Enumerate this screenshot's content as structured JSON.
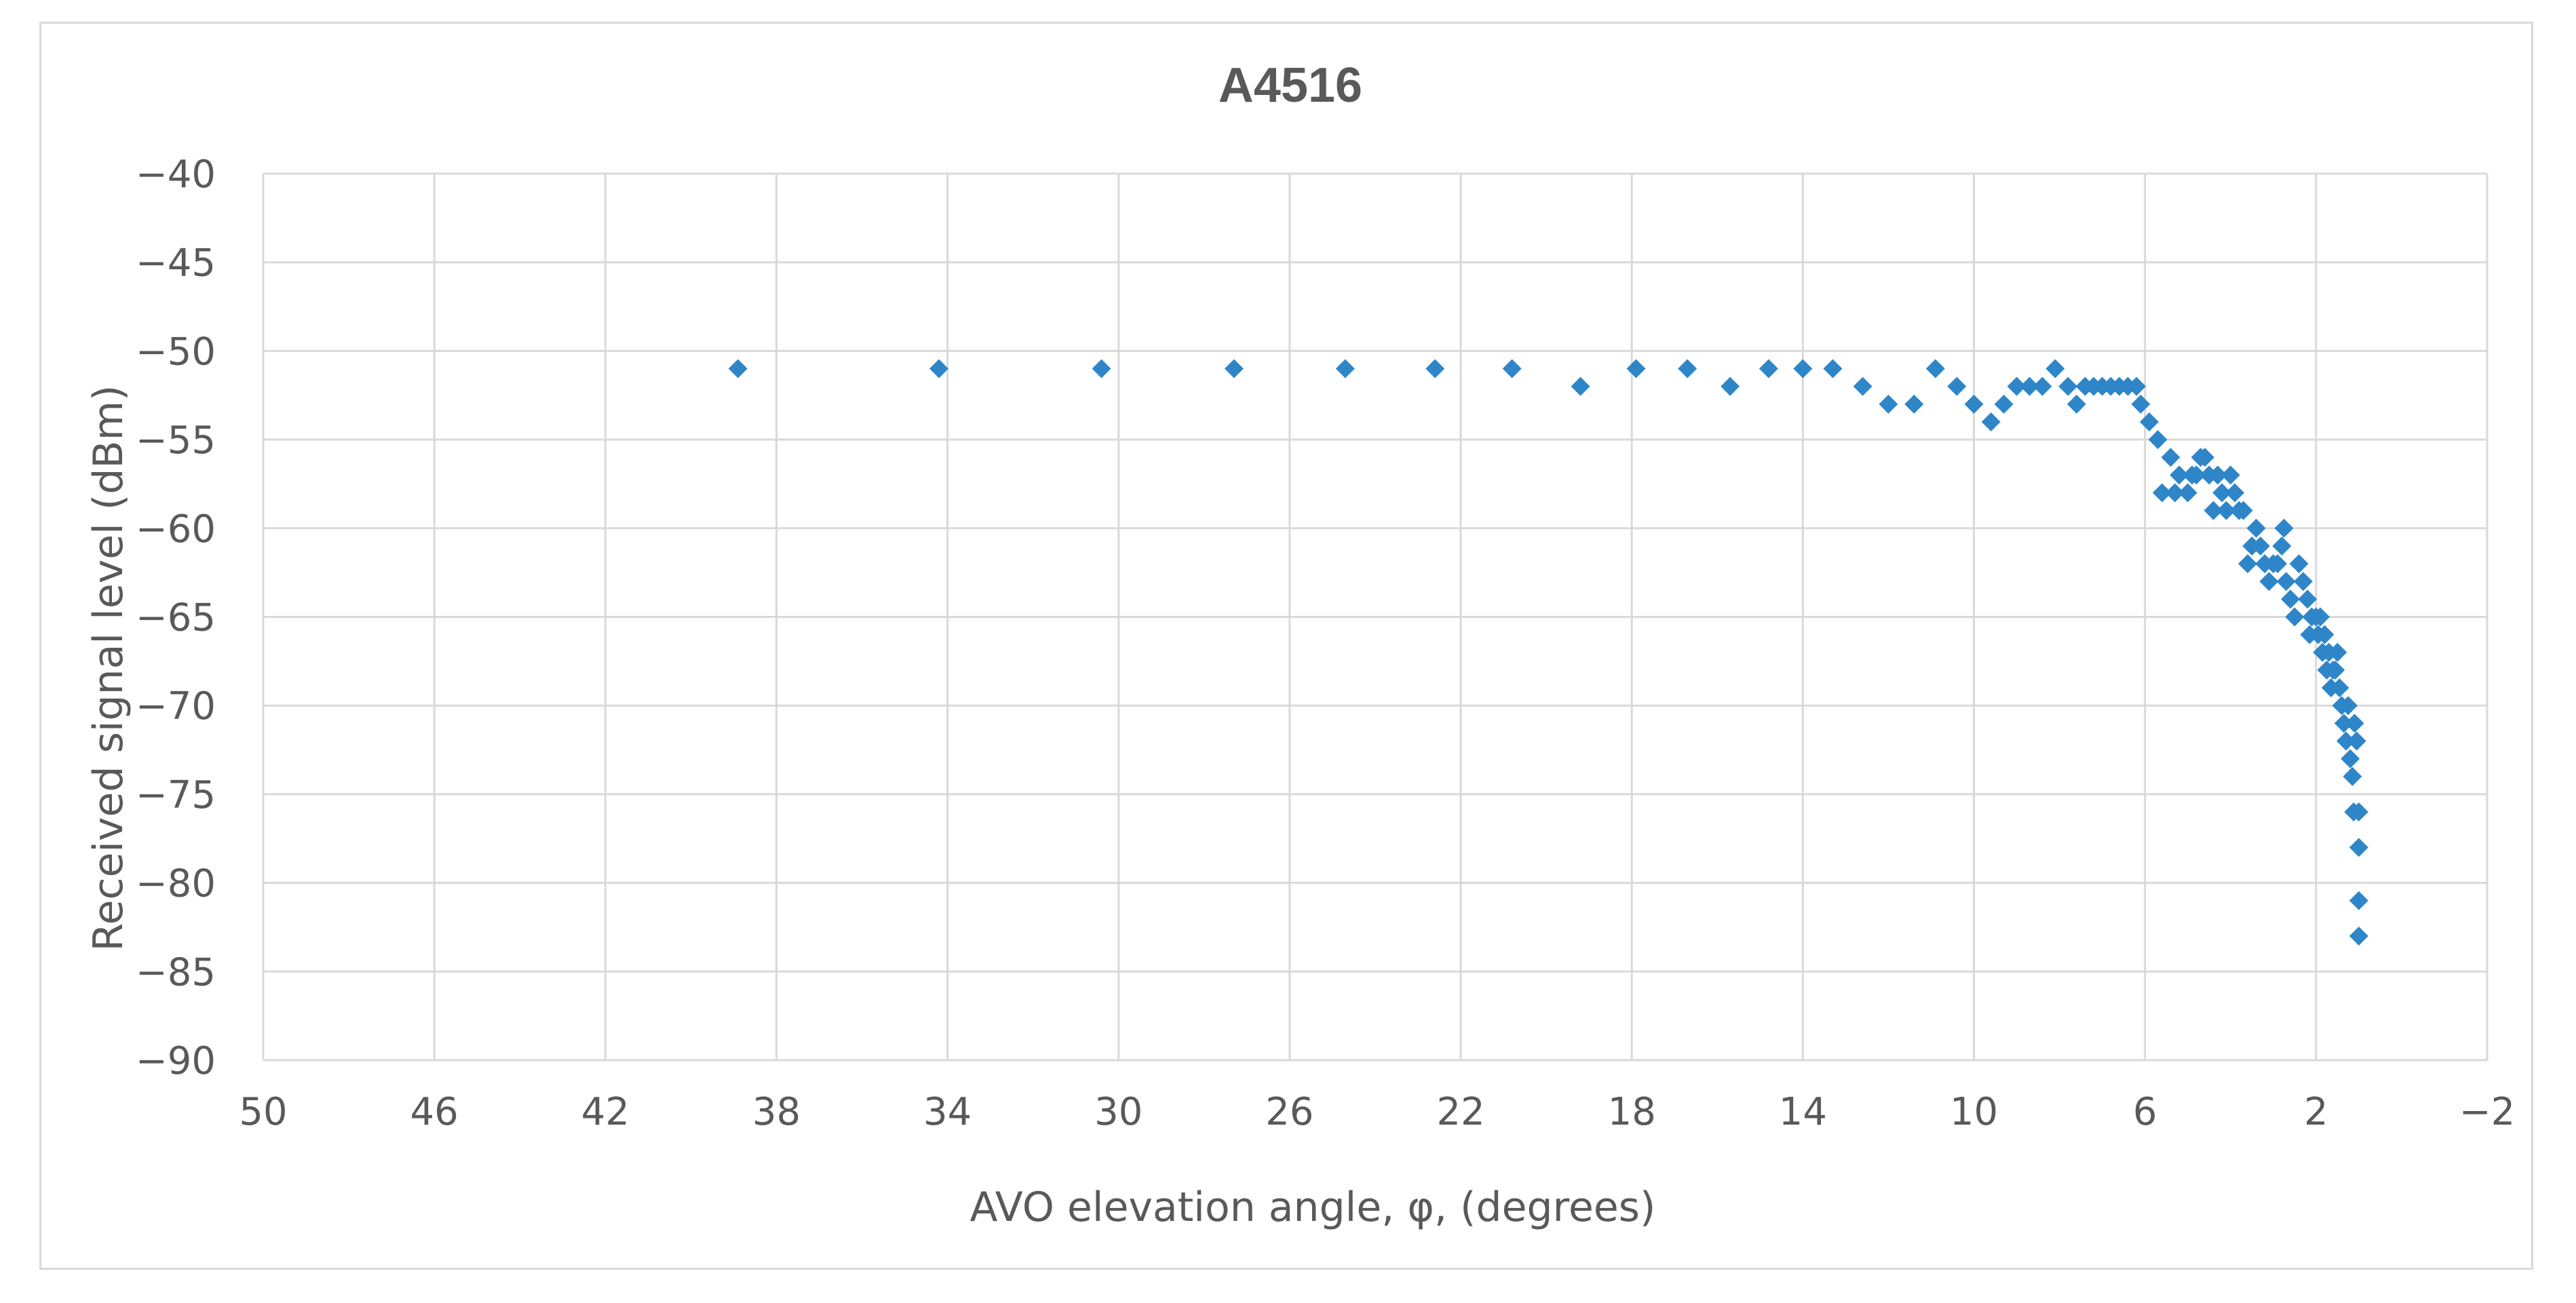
{
  "chart_data": {
    "type": "scatter",
    "title": "A4516",
    "xlabel": "AVO elevation angle, φ, (degrees)",
    "ylabel": "Received signal level (dBm)",
    "xlim": [
      50,
      -2
    ],
    "ylim": [
      -90,
      -40
    ],
    "x_ticks": [
      "50",
      "46",
      "42",
      "38",
      "34",
      "30",
      "26",
      "22",
      "18",
      "14",
      "10",
      "6",
      "2",
      "−2"
    ],
    "y_ticks": [
      "−40",
      "−45",
      "−50",
      "−55",
      "−60",
      "−65",
      "−70",
      "−75",
      "−80",
      "−85",
      "−90"
    ],
    "grid": true,
    "marker_color": "#2e86c9",
    "series": [
      {
        "name": "A4516",
        "points": [
          [
            38.9,
            -51
          ],
          [
            34.2,
            -51
          ],
          [
            30.4,
            -51
          ],
          [
            27.3,
            -51
          ],
          [
            24.7,
            -51
          ],
          [
            22.6,
            -51
          ],
          [
            20.8,
            -51
          ],
          [
            19.2,
            -52
          ],
          [
            17.9,
            -51
          ],
          [
            16.7,
            -51
          ],
          [
            15.7,
            -52
          ],
          [
            14.8,
            -51
          ],
          [
            14.0,
            -51
          ],
          [
            13.3,
            -51
          ],
          [
            12.6,
            -52
          ],
          [
            12.0,
            -53
          ],
          [
            11.4,
            -53
          ],
          [
            10.9,
            -51
          ],
          [
            10.4,
            -52
          ],
          [
            10.0,
            -53
          ],
          [
            9.6,
            -54
          ],
          [
            9.3,
            -53
          ],
          [
            9.0,
            -52
          ],
          [
            8.7,
            -52
          ],
          [
            8.4,
            -52
          ],
          [
            8.1,
            -51
          ],
          [
            7.8,
            -52
          ],
          [
            7.6,
            -53
          ],
          [
            7.4,
            -52
          ],
          [
            7.2,
            -52
          ],
          [
            7.0,
            -52
          ],
          [
            6.8,
            -52
          ],
          [
            6.6,
            -52
          ],
          [
            6.4,
            -52
          ],
          [
            6.2,
            -52
          ],
          [
            6.1,
            -53
          ],
          [
            5.9,
            -54
          ],
          [
            5.7,
            -55
          ],
          [
            5.6,
            -58
          ],
          [
            5.4,
            -56
          ],
          [
            5.3,
            -58
          ],
          [
            5.2,
            -57
          ],
          [
            5.0,
            -58
          ],
          [
            4.9,
            -57
          ],
          [
            4.8,
            -57
          ],
          [
            4.7,
            -56
          ],
          [
            4.6,
            -56
          ],
          [
            4.5,
            -57
          ],
          [
            4.4,
            -59
          ],
          [
            4.3,
            -57
          ],
          [
            4.2,
            -58
          ],
          [
            4.1,
            -59
          ],
          [
            4.0,
            -57
          ],
          [
            3.9,
            -58
          ],
          [
            3.8,
            -59
          ],
          [
            3.7,
            -59
          ],
          [
            3.6,
            -62
          ],
          [
            3.5,
            -61
          ],
          [
            3.4,
            -60
          ],
          [
            3.3,
            -61
          ],
          [
            3.2,
            -62
          ],
          [
            3.1,
            -63
          ],
          [
            3.0,
            -62
          ],
          [
            2.9,
            -62
          ],
          [
            2.8,
            -61
          ],
          [
            2.75,
            -60
          ],
          [
            2.7,
            -63
          ],
          [
            2.6,
            -64
          ],
          [
            2.5,
            -65
          ],
          [
            2.4,
            -62
          ],
          [
            2.3,
            -63
          ],
          [
            2.2,
            -64
          ],
          [
            2.15,
            -66
          ],
          [
            2.1,
            -65
          ],
          [
            2.0,
            -65
          ],
          [
            1.95,
            -66
          ],
          [
            1.9,
            -65
          ],
          [
            1.85,
            -67
          ],
          [
            1.8,
            -66
          ],
          [
            1.75,
            -68
          ],
          [
            1.7,
            -67
          ],
          [
            1.65,
            -69
          ],
          [
            1.6,
            -68
          ],
          [
            1.55,
            -68
          ],
          [
            1.5,
            -67
          ],
          [
            1.45,
            -69
          ],
          [
            1.4,
            -70
          ],
          [
            1.35,
            -71
          ],
          [
            1.3,
            -72
          ],
          [
            1.25,
            -70
          ],
          [
            1.2,
            -73
          ],
          [
            1.15,
            -74
          ],
          [
            1.12,
            -76
          ],
          [
            1.1,
            -71
          ],
          [
            1.05,
            -72
          ],
          [
            1.0,
            -76
          ],
          [
            1.0,
            -78
          ],
          [
            1.0,
            -81
          ],
          [
            1.0,
            -83
          ]
        ]
      }
    ]
  }
}
